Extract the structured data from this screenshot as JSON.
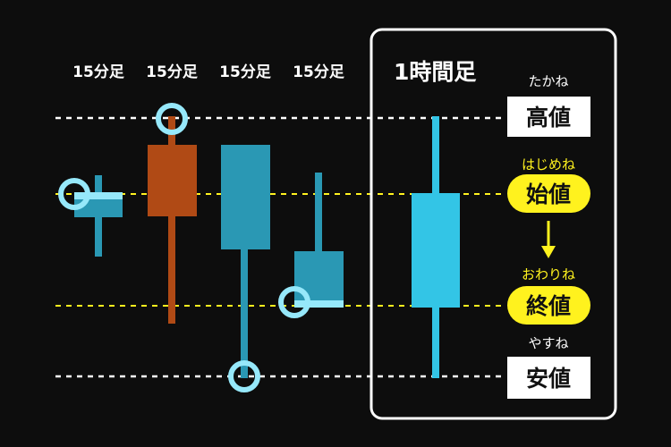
{
  "timeframes": {
    "short_label": "15分足",
    "long_label": "1時間足"
  },
  "candles_15min": [
    {
      "label": "15分足",
      "direction": "down",
      "highlight": "open"
    },
    {
      "label": "15分足",
      "direction": "up",
      "highlight": "high"
    },
    {
      "label": "15分足",
      "direction": "down",
      "highlight": "low"
    },
    {
      "label": "15分足",
      "direction": "down",
      "highlight": "close"
    }
  ],
  "candle_1hour": {
    "direction": "down"
  },
  "price_labels": {
    "high": {
      "reading": "たかね",
      "label": "高値"
    },
    "open": {
      "reading": "はじめね",
      "label": "始値"
    },
    "close": {
      "reading": "おわりね",
      "label": "終値"
    },
    "low": {
      "reading": "やすね",
      "label": "安値"
    }
  },
  "colors": {
    "background": "#0d0d0d",
    "down_candle": "#2a98b4",
    "up_candle": "#b04a15",
    "hour_candle": "#33c5e6",
    "highlight": "#96e8fa",
    "open_close": "#fff21e"
  }
}
